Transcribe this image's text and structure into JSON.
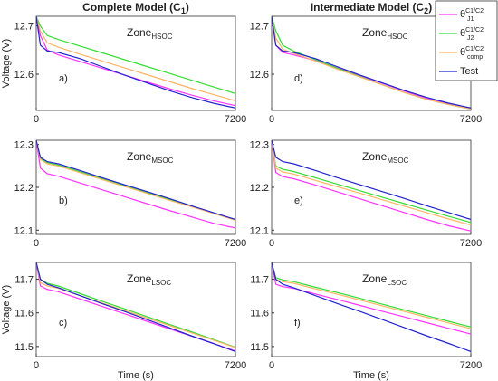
{
  "titles": [
    {
      "text": "Complete Model (C",
      "sub": "1",
      "end": ")"
    },
    {
      "text": "Intermediate Model (C",
      "sub": "2",
      "end": ")"
    }
  ],
  "legend": [
    {
      "name": "θ",
      "sub": "J1",
      "sup": "C1/C2",
      "color": "#ff33ff"
    },
    {
      "name": "θ",
      "sub": "J2",
      "sup": "C1/C2",
      "color": "#33dd33"
    },
    {
      "name": "θ",
      "sub": "comp",
      "sup": "C1/C2",
      "color": "#ffb366"
    },
    {
      "name": "Test",
      "color": "#2222cc"
    }
  ],
  "chart_data": [
    {
      "type": "line",
      "label": "a)",
      "zone": "Zone",
      "zone_sub": "HSOC",
      "ylabel": "Voltage (V)",
      "x": [
        0,
        150,
        400,
        800,
        1600,
        2400,
        3200,
        4000,
        4800,
        5600,
        6400,
        7200
      ],
      "xlim": [
        0,
        7200
      ],
      "xticks": [
        0,
        7200
      ],
      "ylim": [
        12.525,
        12.72
      ],
      "yticks": [
        12.6,
        12.7
      ],
      "series": [
        {
          "values": [
            12.72,
            12.68,
            12.65,
            12.64,
            12.626,
            12.612,
            12.598,
            12.584,
            12.57,
            12.557,
            12.545,
            12.535
          ]
        },
        {
          "values": [
            12.72,
            12.7,
            12.68,
            12.672,
            12.658,
            12.644,
            12.63,
            12.616,
            12.602,
            12.588,
            12.574,
            12.56
          ]
        },
        {
          "values": [
            12.72,
            12.69,
            12.665,
            12.656,
            12.641,
            12.627,
            12.613,
            12.599,
            12.585,
            12.571,
            12.558,
            12.545
          ]
        },
        {
          "values": [
            12.72,
            12.66,
            12.648,
            12.645,
            12.632,
            12.615,
            12.598,
            12.582,
            12.566,
            12.552,
            12.54,
            12.53
          ]
        }
      ]
    },
    {
      "type": "line",
      "label": "d)",
      "zone": "Zone",
      "zone_sub": "HSOC",
      "x": [
        0,
        150,
        400,
        800,
        1600,
        2400,
        3200,
        4000,
        4800,
        5600,
        6400,
        7200
      ],
      "xlim": [
        0,
        7200
      ],
      "xticks": [
        0,
        7200
      ],
      "ylim": [
        12.525,
        12.72
      ],
      "yticks": [
        12.6,
        12.7
      ],
      "series": [
        {
          "values": [
            12.72,
            12.66,
            12.645,
            12.64,
            12.628,
            12.613,
            12.597,
            12.581,
            12.565,
            12.55,
            12.538,
            12.529
          ]
        },
        {
          "values": [
            12.72,
            12.69,
            12.66,
            12.648,
            12.63,
            12.612,
            12.595,
            12.578,
            12.562,
            12.548,
            12.537,
            12.528
          ]
        },
        {
          "values": [
            12.72,
            12.675,
            12.652,
            12.643,
            12.627,
            12.61,
            12.594,
            12.578,
            12.562,
            12.548,
            12.537,
            12.528
          ]
        },
        {
          "values": [
            12.72,
            12.66,
            12.648,
            12.645,
            12.632,
            12.615,
            12.598,
            12.582,
            12.566,
            12.552,
            12.54,
            12.53
          ]
        }
      ]
    },
    {
      "type": "line",
      "label": "b)",
      "zone": "Zone",
      "zone_sub": "MSOC",
      "x": [
        0,
        150,
        400,
        800,
        1600,
        2400,
        3200,
        4000,
        4800,
        5600,
        6400,
        7200
      ],
      "xlim": [
        0,
        7200
      ],
      "xticks": [
        0,
        7200
      ],
      "ylim": [
        12.09,
        12.31
      ],
      "yticks": [
        12.1,
        12.2,
        12.3
      ],
      "series": [
        {
          "values": [
            12.31,
            12.245,
            12.232,
            12.226,
            12.21,
            12.194,
            12.178,
            12.162,
            12.146,
            12.131,
            12.116,
            12.105
          ]
        },
        {
          "values": [
            12.31,
            12.268,
            12.258,
            12.252,
            12.236,
            12.22,
            12.204,
            12.188,
            12.172,
            12.156,
            12.14,
            12.124
          ]
        },
        {
          "values": [
            12.31,
            12.265,
            12.255,
            12.25,
            12.234,
            12.218,
            12.202,
            12.186,
            12.17,
            12.155,
            12.139,
            12.123
          ]
        },
        {
          "values": [
            12.31,
            12.27,
            12.26,
            12.255,
            12.239,
            12.222,
            12.206,
            12.19,
            12.174,
            12.157,
            12.141,
            12.125
          ]
        }
      ]
    },
    {
      "type": "line",
      "label": "e)",
      "zone": "Zone",
      "zone_sub": "MSOC",
      "x": [
        0,
        150,
        400,
        800,
        1600,
        2400,
        3200,
        4000,
        4800,
        5600,
        6400,
        7200
      ],
      "xlim": [
        0,
        7200
      ],
      "xticks": [
        0,
        7200
      ],
      "ylim": [
        12.09,
        12.31
      ],
      "yticks": [
        12.1,
        12.2,
        12.3
      ],
      "series": [
        {
          "values": [
            12.31,
            12.235,
            12.225,
            12.22,
            12.205,
            12.189,
            12.173,
            12.157,
            12.141,
            12.125,
            12.11,
            12.098
          ]
        },
        {
          "values": [
            12.31,
            12.25,
            12.242,
            12.237,
            12.222,
            12.207,
            12.192,
            12.177,
            12.162,
            12.147,
            12.132,
            12.118
          ]
        },
        {
          "values": [
            12.31,
            12.245,
            12.236,
            12.231,
            12.216,
            12.201,
            12.186,
            12.171,
            12.156,
            12.141,
            12.126,
            12.112
          ]
        },
        {
          "values": [
            12.31,
            12.27,
            12.26,
            12.255,
            12.239,
            12.222,
            12.206,
            12.19,
            12.174,
            12.157,
            12.141,
            12.125
          ]
        }
      ]
    },
    {
      "type": "line",
      "label": "c)",
      "zone": "Zone",
      "zone_sub": "LSOC",
      "ylabel": "Voltage (V)",
      "xlabel": "Time (s)",
      "x": [
        0,
        150,
        400,
        800,
        1600,
        2400,
        3200,
        4000,
        4800,
        5600,
        6400,
        7200
      ],
      "xlim": [
        0,
        7200
      ],
      "xticks": [
        0,
        7200
      ],
      "ylim": [
        11.47,
        11.75
      ],
      "yticks": [
        11.5,
        11.6,
        11.7
      ],
      "series": [
        {
          "values": [
            11.75,
            11.68,
            11.67,
            11.663,
            11.641,
            11.619,
            11.597,
            11.575,
            11.553,
            11.531,
            11.509,
            11.487
          ]
        },
        {
          "values": [
            11.75,
            11.7,
            11.688,
            11.68,
            11.657,
            11.634,
            11.612,
            11.589,
            11.566,
            11.544,
            11.521,
            11.498
          ]
        },
        {
          "values": [
            11.75,
            11.69,
            11.68,
            11.673,
            11.651,
            11.629,
            11.607,
            11.585,
            11.563,
            11.541,
            11.519,
            11.497
          ]
        },
        {
          "values": [
            11.75,
            11.7,
            11.685,
            11.675,
            11.651,
            11.627,
            11.604,
            11.58,
            11.556,
            11.532,
            11.509,
            11.485
          ]
        }
      ]
    },
    {
      "type": "line",
      "label": "f)",
      "zone": "Zone",
      "zone_sub": "LSOC",
      "xlabel": "Time (s)",
      "x": [
        0,
        150,
        400,
        800,
        1600,
        2400,
        3200,
        4000,
        4800,
        5600,
        6400,
        7200
      ],
      "xlim": [
        0,
        7200
      ],
      "xticks": [
        0,
        7200
      ],
      "ylim": [
        11.47,
        11.75
      ],
      "yticks": [
        11.5,
        11.6,
        11.7
      ],
      "series": [
        {
          "values": [
            11.75,
            11.685,
            11.678,
            11.673,
            11.656,
            11.639,
            11.622,
            11.605,
            11.588,
            11.571,
            11.554,
            11.537
          ]
        },
        {
          "values": [
            11.75,
            11.705,
            11.698,
            11.693,
            11.676,
            11.66,
            11.643,
            11.626,
            11.609,
            11.592,
            11.575,
            11.558
          ]
        },
        {
          "values": [
            11.75,
            11.7,
            11.693,
            11.688,
            11.671,
            11.655,
            11.638,
            11.621,
            11.604,
            11.587,
            11.57,
            11.553
          ]
        },
        {
          "values": [
            11.75,
            11.7,
            11.685,
            11.675,
            11.651,
            11.627,
            11.604,
            11.58,
            11.556,
            11.532,
            11.509,
            11.485
          ]
        }
      ]
    }
  ]
}
